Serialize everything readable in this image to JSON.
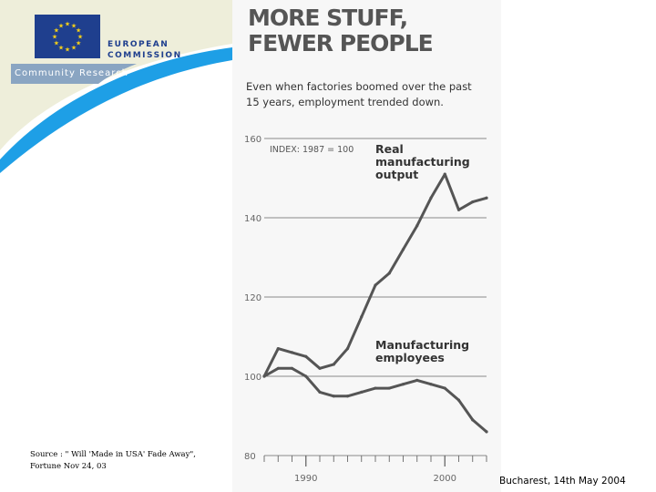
{
  "header": {
    "commission_line1": "EUROPEAN",
    "commission_line2": "COMMISSION",
    "community_research": "Community Research",
    "brand_blue": "#1f3f8e",
    "band_cream": "#eeeeda",
    "swoosh_blue": "#1e9fe6",
    "star_yellow": "#f7d117"
  },
  "chart_data": {
    "type": "line",
    "title": "MORE STUFF, FEWER PEOPLE",
    "title_lines": [
      "MORE STUFF,",
      "FEWER PEOPLE"
    ],
    "subtitle": "Even when factories boomed over the past 15 years, employment trended down.",
    "subtitle_lines": [
      "Even when factories boomed over the past",
      "15 years, employment trended down."
    ],
    "index_note": "INDEX: 1987 = 100",
    "xlabel": "",
    "ylabel": "",
    "xlim": [
      1987,
      2003
    ],
    "ylim": [
      80,
      160
    ],
    "yticks": [
      80,
      100,
      120,
      140,
      160
    ],
    "xticks": [
      1990,
      2000
    ],
    "xtick_labels": [
      "1990",
      "2000"
    ],
    "grid": true,
    "series": [
      {
        "name": "Real manufacturing output",
        "label_lines": [
          "Real",
          "manufacturing",
          "output"
        ],
        "x": [
          1987,
          1988,
          1989,
          1990,
          1991,
          1992,
          1993,
          1994,
          1995,
          1996,
          1997,
          1998,
          1999,
          2000,
          2001,
          2002,
          2003
        ],
        "values": [
          100,
          107,
          106,
          105,
          102,
          103,
          107,
          115,
          123,
          126,
          132,
          138,
          145,
          151,
          142,
          144,
          145
        ]
      },
      {
        "name": "Manufacturing employees",
        "label_lines": [
          "Manufacturing",
          "employees"
        ],
        "x": [
          1987,
          1988,
          1989,
          1990,
          1991,
          1992,
          1993,
          1994,
          1995,
          1996,
          1997,
          1998,
          1999,
          2000,
          2001,
          2002,
          2003
        ],
        "values": [
          100,
          102,
          102,
          100,
          96,
          95,
          95,
          96,
          97,
          97,
          98,
          99,
          98,
          97,
          94,
          89,
          86
        ]
      }
    ]
  },
  "source_note": {
    "line1": "Source : \" Will 'Made in USA' Fade Away\",",
    "line2": "Fortune Nov 24, 03"
  },
  "footer": {
    "location_date": "Bucharest, 14th May 2004"
  }
}
